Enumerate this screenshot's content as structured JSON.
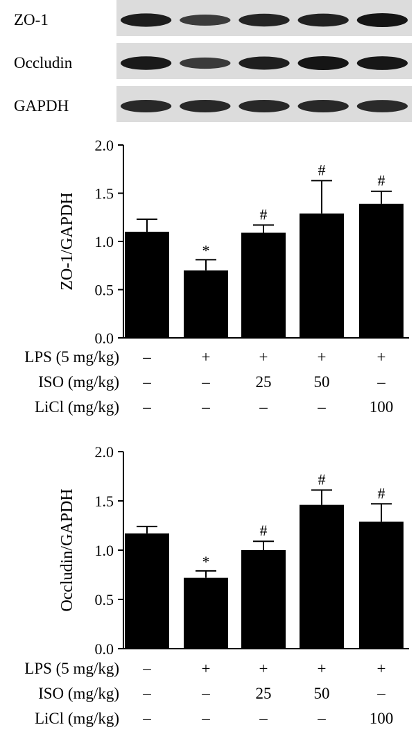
{
  "blots": {
    "lanes": 5,
    "rows": [
      {
        "label": "ZO-1",
        "intensity": [
          0.92,
          0.6,
          0.85,
          0.88,
          1.0
        ]
      },
      {
        "label": "Occludin",
        "intensity": [
          0.95,
          0.62,
          0.9,
          1.0,
          0.98
        ]
      },
      {
        "label": "GAPDH",
        "intensity": [
          0.8,
          0.8,
          0.8,
          0.8,
          0.78
        ]
      }
    ]
  },
  "chart_data": [
    {
      "type": "bar",
      "title": "",
      "xlabel": "",
      "ylabel": "ZO-1/GAPDH",
      "ylim": [
        0,
        2.0
      ],
      "yticks": [
        "0.0",
        "0.5",
        "1.0",
        "1.5",
        "2.0"
      ],
      "values": [
        1.1,
        0.7,
        1.09,
        1.29,
        1.39
      ],
      "errors": [
        0.13,
        0.11,
        0.08,
        0.34,
        0.13
      ],
      "annotations": [
        "",
        "*",
        "#",
        "#",
        "#"
      ],
      "conditions": [
        {
          "label": "LPS (5 mg/kg)",
          "values": [
            "–",
            "+",
            "+",
            "+",
            "+"
          ]
        },
        {
          "label": "ISO (mg/kg)",
          "values": [
            "–",
            "–",
            "25",
            "50",
            "–"
          ]
        },
        {
          "label": "LiCl (mg/kg)",
          "values": [
            "–",
            "–",
            "–",
            "–",
            "100"
          ]
        }
      ]
    },
    {
      "type": "bar",
      "title": "",
      "xlabel": "",
      "ylabel": "Occludin/GAPDH",
      "ylim": [
        0,
        2.0
      ],
      "yticks": [
        "0.0",
        "0.5",
        "1.0",
        "1.5",
        "2.0"
      ],
      "values": [
        1.17,
        0.72,
        1.0,
        1.46,
        1.29
      ],
      "errors": [
        0.07,
        0.07,
        0.09,
        0.15,
        0.18
      ],
      "annotations": [
        "",
        "*",
        "#",
        "#",
        "#"
      ],
      "conditions": [
        {
          "label": "LPS (5 mg/kg)",
          "values": [
            "–",
            "+",
            "+",
            "+",
            "+"
          ]
        },
        {
          "label": "ISO (mg/kg)",
          "values": [
            "–",
            "–",
            "25",
            "50",
            "–"
          ]
        },
        {
          "label": "LiCl (mg/kg)",
          "values": [
            "–",
            "–",
            "–",
            "–",
            "100"
          ]
        }
      ]
    }
  ]
}
